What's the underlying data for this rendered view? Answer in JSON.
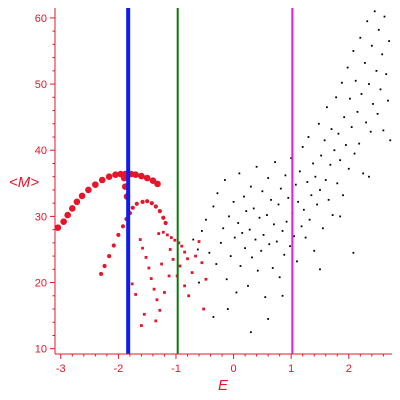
{
  "chart_data": {
    "type": "scatter",
    "xlabel": "E",
    "ylabel": "<M>",
    "xlim": [
      -3.1,
      2.75
    ],
    "ylim": [
      9.2,
      61.5
    ],
    "x_ticks": [
      -3,
      -2,
      -1,
      0,
      1,
      2
    ],
    "y_ticks": [
      10,
      20,
      30,
      40,
      50,
      60
    ],
    "grid": false,
    "axis_color": "#e8152a",
    "vertical_lines": [
      {
        "x": -1.83,
        "color": "#0d1df0"
      },
      {
        "x": -0.97,
        "color": "#0a7a0a"
      },
      {
        "x": 1.02,
        "color": "#e81ae8"
      }
    ],
    "series": [
      {
        "color": "#e8152a",
        "marker": "large",
        "points": [
          [
            -3.05,
            28.3
          ],
          [
            -2.95,
            29.2
          ],
          [
            -2.88,
            30.2
          ],
          [
            -2.8,
            31.2
          ],
          [
            -2.72,
            32.2
          ],
          [
            -2.63,
            33.1
          ],
          [
            -2.52,
            34.0
          ],
          [
            -2.4,
            34.8
          ],
          [
            -2.28,
            35.5
          ],
          [
            -2.16,
            36.0
          ],
          [
            -2.05,
            36.3
          ],
          [
            -1.96,
            36.4
          ],
          [
            -1.88,
            36.4
          ],
          [
            -1.78,
            36.4
          ],
          [
            -1.7,
            36.3
          ],
          [
            -1.6,
            36.1
          ],
          [
            -1.5,
            35.8
          ],
          [
            -1.4,
            35.4
          ],
          [
            -1.32,
            34.9
          ],
          [
            -1.9,
            35.8
          ],
          [
            -1.88,
            34.5
          ],
          [
            -1.85,
            33.0
          ]
        ]
      },
      {
        "color": "#e8152a",
        "marker": "medium",
        "points": [
          [
            -1.8,
            30.5
          ],
          [
            -1.75,
            31.3
          ],
          [
            -1.68,
            31.9
          ],
          [
            -1.58,
            32.2
          ],
          [
            -1.5,
            32.3
          ],
          [
            -1.42,
            32.0
          ],
          [
            -1.35,
            31.5
          ],
          [
            -1.28,
            30.8
          ],
          [
            -1.86,
            29.6
          ],
          [
            -1.92,
            28.5
          ],
          [
            -2.0,
            27.2
          ],
          [
            -2.08,
            25.6
          ],
          [
            -2.16,
            24.0
          ],
          [
            -2.24,
            22.5
          ],
          [
            -2.3,
            21.3
          ],
          [
            -1.22,
            29.8
          ],
          [
            -1.18,
            29.0
          ]
        ]
      },
      {
        "color": "#e8152a",
        "marker": "small",
        "points": [
          [
            -1.62,
            26.5
          ],
          [
            -1.58,
            25.2
          ],
          [
            -1.52,
            23.8
          ],
          [
            -1.47,
            22.2
          ],
          [
            -1.43,
            20.6
          ],
          [
            -1.38,
            19.0
          ],
          [
            -1.33,
            17.4
          ],
          [
            -1.55,
            15.2
          ],
          [
            -1.6,
            13.5
          ],
          [
            -1.7,
            18.2
          ],
          [
            -1.76,
            19.8
          ],
          [
            -1.3,
            27.4
          ],
          [
            -1.22,
            27.6
          ],
          [
            -1.15,
            27.2
          ],
          [
            -1.08,
            26.8
          ],
          [
            -1.02,
            26.4
          ],
          [
            -0.95,
            26.0
          ],
          [
            -0.9,
            25.5
          ],
          [
            -0.85,
            24.6
          ],
          [
            -0.8,
            23.6
          ],
          [
            -1.35,
            14.2
          ],
          [
            -1.28,
            15.8
          ],
          [
            -1.2,
            18.5
          ],
          [
            -1.12,
            21.0
          ],
          [
            -1.05,
            23.5
          ],
          [
            -0.93,
            22.5
          ],
          [
            -0.85,
            19.5
          ],
          [
            -0.78,
            18.0
          ],
          [
            -0.72,
            21.5
          ],
          [
            -0.66,
            24.0
          ],
          [
            -0.6,
            26.2
          ],
          [
            -0.55,
            23.0
          ],
          [
            -0.48,
            20.5
          ],
          [
            -0.52,
            16.0
          ],
          [
            -1.25,
            22.8
          ],
          [
            -1.1,
            25.0
          ],
          [
            -0.98,
            21.0
          ]
        ]
      },
      {
        "color": "#000000",
        "marker": "dot",
        "points": [
          [
            -0.7,
            26.5
          ],
          [
            -0.62,
            25.0
          ],
          [
            -0.55,
            27.8
          ],
          [
            -0.48,
            29.5
          ],
          [
            -0.42,
            24.5
          ],
          [
            -0.35,
            31.5
          ],
          [
            -0.3,
            22.8
          ],
          [
            -0.28,
            33.5
          ],
          [
            -0.22,
            26.0
          ],
          [
            -0.18,
            28.2
          ],
          [
            -0.15,
            35.5
          ],
          [
            -0.12,
            20.5
          ],
          [
            -0.08,
            30.0
          ],
          [
            -0.05,
            24.0
          ],
          [
            0.0,
            32.2
          ],
          [
            0.02,
            26.8
          ],
          [
            0.05,
            18.5
          ],
          [
            0.08,
            29.0
          ],
          [
            0.1,
            36.5
          ],
          [
            0.12,
            22.5
          ],
          [
            0.15,
            27.5
          ],
          [
            0.18,
            33.0
          ],
          [
            0.2,
            25.2
          ],
          [
            0.22,
            30.8
          ],
          [
            0.25,
            19.5
          ],
          [
            0.28,
            28.0
          ],
          [
            0.3,
            34.5
          ],
          [
            0.32,
            23.8
          ],
          [
            0.35,
            31.2
          ],
          [
            0.38,
            26.5
          ],
          [
            0.4,
            37.5
          ],
          [
            0.42,
            21.8
          ],
          [
            0.45,
            29.8
          ],
          [
            0.48,
            24.8
          ],
          [
            0.5,
            33.8
          ],
          [
            0.52,
            27.2
          ],
          [
            0.55,
            17.8
          ],
          [
            0.58,
            30.2
          ],
          [
            0.6,
            35.8
          ],
          [
            0.62,
            25.8
          ],
          [
            0.65,
            32.5
          ],
          [
            0.68,
            22.2
          ],
          [
            0.7,
            28.8
          ],
          [
            0.72,
            38.2
          ],
          [
            0.75,
            26.2
          ],
          [
            0.78,
            31.8
          ],
          [
            0.8,
            20.8
          ],
          [
            0.82,
            34.2
          ],
          [
            0.85,
            27.8
          ],
          [
            0.88,
            24.2
          ],
          [
            0.9,
            36.2
          ],
          [
            0.92,
            29.2
          ],
          [
            0.95,
            32.8
          ],
          [
            0.98,
            25.5
          ],
          [
            1.0,
            38.8
          ],
          [
            1.02,
            30.5
          ],
          [
            1.05,
            27.0
          ],
          [
            1.08,
            34.8
          ],
          [
            1.1,
            23.2
          ],
          [
            1.12,
            32.2
          ],
          [
            1.15,
            36.8
          ],
          [
            1.18,
            28.5
          ],
          [
            1.2,
            40.5
          ],
          [
            1.22,
            31.0
          ],
          [
            1.25,
            26.8
          ],
          [
            1.28,
            35.2
          ],
          [
            1.3,
            42.0
          ],
          [
            1.32,
            29.5
          ],
          [
            1.35,
            33.2
          ],
          [
            1.38,
            38.0
          ],
          [
            1.4,
            24.8
          ],
          [
            1.42,
            36.0
          ],
          [
            1.45,
            31.8
          ],
          [
            1.48,
            44.0
          ],
          [
            1.5,
            34.0
          ],
          [
            1.52,
            39.2
          ],
          [
            1.55,
            28.2
          ],
          [
            1.58,
            41.5
          ],
          [
            1.6,
            35.5
          ],
          [
            1.62,
            46.5
          ],
          [
            1.65,
            32.5
          ],
          [
            1.68,
            37.8
          ],
          [
            1.7,
            43.2
          ],
          [
            1.72,
            30.2
          ],
          [
            1.75,
            40.0
          ],
          [
            1.78,
            48.0
          ],
          [
            1.8,
            35.0
          ],
          [
            1.82,
            42.5
          ],
          [
            1.85,
            38.5
          ],
          [
            1.88,
            50.2
          ],
          [
            1.9,
            33.2
          ],
          [
            1.92,
            45.0
          ],
          [
            1.95,
            40.8
          ],
          [
            1.98,
            52.5
          ],
          [
            2.0,
            37.2
          ],
          [
            2.02,
            47.8
          ],
          [
            2.05,
            43.5
          ],
          [
            2.08,
            55.0
          ],
          [
            2.1,
            39.5
          ],
          [
            2.12,
            50.5
          ],
          [
            2.15,
            45.8
          ],
          [
            2.18,
            41.0
          ],
          [
            2.2,
            57.0
          ],
          [
            2.22,
            48.5
          ],
          [
            2.25,
            36.5
          ],
          [
            2.28,
            53.2
          ],
          [
            2.3,
            44.2
          ],
          [
            2.32,
            59.5
          ],
          [
            2.35,
            50.0
          ],
          [
            2.38,
            42.8
          ],
          [
            2.4,
            55.8
          ],
          [
            2.42,
            47.0
          ],
          [
            2.45,
            61.0
          ],
          [
            2.48,
            52.0
          ],
          [
            2.5,
            45.5
          ],
          [
            2.52,
            58.2
          ],
          [
            2.55,
            49.2
          ],
          [
            2.58,
            54.5
          ],
          [
            2.6,
            43.0
          ],
          [
            2.62,
            60.2
          ],
          [
            2.65,
            51.5
          ],
          [
            2.68,
            47.5
          ],
          [
            2.7,
            56.5
          ],
          [
            2.72,
            41.5
          ],
          [
            2.08,
            24.5
          ],
          [
            1.5,
            22.0
          ],
          [
            0.6,
            14.5
          ],
          [
            0.3,
            12.5
          ],
          [
            -0.1,
            16.0
          ],
          [
            0.85,
            18.0
          ],
          [
            -0.6,
            20.0
          ],
          [
            -0.35,
            14.8
          ],
          [
            1.85,
            30.0
          ],
          [
            2.35,
            36.0
          ]
        ]
      }
    ]
  }
}
